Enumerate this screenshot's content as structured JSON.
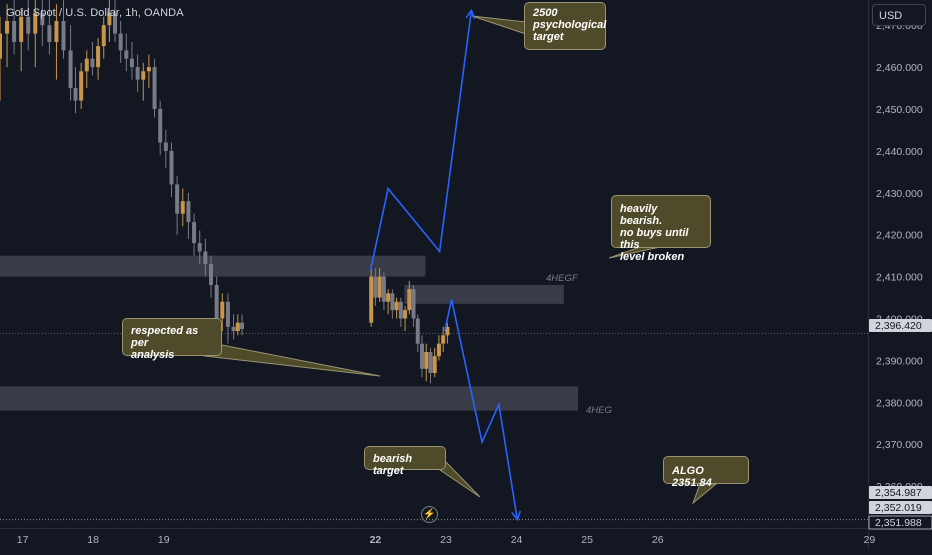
{
  "header": {
    "symbol_title": "Gold Spot / U.S. Dollar, 1h, OANDA",
    "currency_button": "USD"
  },
  "colors": {
    "background": "#131722",
    "up_candle": "#c8954a",
    "down_candle": "#787b86",
    "projection": "#2962ff",
    "zone_fill": "#434651",
    "callout_fill": "#4f4b2a",
    "last_price_tag": "#d1d4dc"
  },
  "annotations": {
    "target_2500": "2500\npsychological\ntarget",
    "heavily_bearish": "heavily bearish.\nno buys until this\nlevel broken",
    "respected": "respected as per\nanalysis",
    "bearish_target": "bearish target",
    "algo": "ALGO 2351.84",
    "zone_upper_label": "4HEGF",
    "zone_lower_label": "4HEG"
  },
  "chart_data": {
    "type": "candlestick",
    "title": "Gold Spot / U.S. Dollar, 1h, OANDA",
    "xlabel": "",
    "ylabel": "",
    "grid": false,
    "ylim": [
      2350,
      2476
    ],
    "x_ticks": [
      "17",
      "18",
      "19",
      "22",
      "23",
      "24",
      "25",
      "26",
      "29"
    ],
    "x_tick_days": [
      17,
      18,
      19,
      22,
      23,
      24,
      25,
      26,
      29
    ],
    "xlim_days": [
      16.68,
      28.98
    ],
    "y_ticks": [
      2360,
      2370,
      2380,
      2390,
      2400,
      2410,
      2420,
      2430,
      2440,
      2450,
      2460
    ],
    "y_tick_labels": [
      "2,360.000",
      "2,370.000",
      "2,380.000",
      "2,390.000",
      "2,400.000",
      "2,410.000",
      "2,420.000",
      "2,430.000",
      "2,440.000",
      "2,450.000",
      "2,460.000"
    ],
    "price_tags": [
      {
        "value": 2396.42,
        "label": "2,396.420",
        "style": "last"
      },
      {
        "value": 2354.987,
        "label": "2,354.987",
        "style": "grey"
      },
      {
        "value": 2352.019,
        "label": "2,352.019",
        "style": "grey"
      },
      {
        "value": 2351.988,
        "label": "2,351.988",
        "style": "dark"
      }
    ],
    "zones": [
      {
        "name": "upper-wide",
        "y_top": 2415.0,
        "y_bottom": 2410.0,
        "x_start": 16.68,
        "x_end": 22.71
      },
      {
        "name": "4HEGF",
        "y_top": 2408.0,
        "y_bottom": 2403.5,
        "x_start": 22.41,
        "x_end": 24.67
      },
      {
        "name": "4HEG",
        "y_top": 2383.8,
        "y_bottom": 2378.0,
        "x_start": 16.68,
        "x_end": 24.87
      }
    ],
    "projections": [
      {
        "name": "bullish-path",
        "points": [
          [
            21.93,
            2411.5
          ],
          [
            22.18,
            2431.0
          ],
          [
            22.91,
            2416.0
          ],
          [
            23.36,
            2473.5
          ]
        ]
      },
      {
        "name": "bearish-path",
        "points": [
          [
            22.98,
            2397.0
          ],
          [
            23.08,
            2404.5
          ],
          [
            23.51,
            2370.5
          ],
          [
            23.75,
            2379.5
          ],
          [
            24.01,
            2352.0
          ]
        ]
      }
    ],
    "algo_line": 2352.0,
    "series": [
      {
        "x": 16.68,
        "open": 2462.0,
        "high": 2472.0,
        "low": 2452.0,
        "close": 2468.0
      },
      {
        "x": 16.78,
        "open": 2468.0,
        "high": 2475.0,
        "low": 2460.0,
        "close": 2471.0
      },
      {
        "x": 16.88,
        "open": 2471.0,
        "high": 2476.0,
        "low": 2463.0,
        "close": 2466.0
      },
      {
        "x": 16.98,
        "open": 2466.0,
        "high": 2474.0,
        "low": 2459.0,
        "close": 2472.0
      },
      {
        "x": 17.08,
        "open": 2472.0,
        "high": 2476.0,
        "low": 2464.0,
        "close": 2468.0
      },
      {
        "x": 17.18,
        "open": 2468.0,
        "high": 2476.0,
        "low": 2460.0,
        "close": 2473.0
      },
      {
        "x": 17.28,
        "open": 2473.0,
        "high": 2476.0,
        "low": 2465.0,
        "close": 2470.0
      },
      {
        "x": 17.38,
        "open": 2470.0,
        "high": 2476.0,
        "low": 2463.0,
        "close": 2466.0
      },
      {
        "x": 17.48,
        "open": 2466.0,
        "high": 2475.0,
        "low": 2457.0,
        "close": 2471.0
      },
      {
        "x": 17.58,
        "open": 2471.0,
        "high": 2476.0,
        "low": 2462.0,
        "close": 2464.0
      },
      {
        "x": 17.68,
        "open": 2464.0,
        "high": 2470.0,
        "low": 2452.0,
        "close": 2455.0
      },
      {
        "x": 17.75,
        "open": 2455.0,
        "high": 2460.0,
        "low": 2449.0,
        "close": 2452.0
      },
      {
        "x": 17.83,
        "open": 2452.0,
        "high": 2461.0,
        "low": 2450.0,
        "close": 2459.0
      },
      {
        "x": 17.91,
        "open": 2459.0,
        "high": 2464.0,
        "low": 2455.0,
        "close": 2462.0
      },
      {
        "x": 17.99,
        "open": 2462.0,
        "high": 2466.0,
        "low": 2458.0,
        "close": 2460.0
      },
      {
        "x": 18.07,
        "open": 2460.0,
        "high": 2467.0,
        "low": 2457.0,
        "close": 2465.0
      },
      {
        "x": 18.15,
        "open": 2465.0,
        "high": 2472.0,
        "low": 2462.0,
        "close": 2470.0
      },
      {
        "x": 18.23,
        "open": 2470.0,
        "high": 2476.0,
        "low": 2466.0,
        "close": 2473.0
      },
      {
        "x": 18.31,
        "open": 2473.0,
        "high": 2476.0,
        "low": 2466.0,
        "close": 2468.0
      },
      {
        "x": 18.39,
        "open": 2468.0,
        "high": 2471.0,
        "low": 2461.0,
        "close": 2464.0
      },
      {
        "x": 18.47,
        "open": 2464.0,
        "high": 2468.0,
        "low": 2459.0,
        "close": 2462.0
      },
      {
        "x": 18.55,
        "open": 2462.0,
        "high": 2466.0,
        "low": 2457.0,
        "close": 2460.0
      },
      {
        "x": 18.63,
        "open": 2460.0,
        "high": 2463.0,
        "low": 2454.0,
        "close": 2457.0
      },
      {
        "x": 18.71,
        "open": 2457.0,
        "high": 2461.0,
        "low": 2452.0,
        "close": 2459.0
      },
      {
        "x": 18.79,
        "open": 2459.0,
        "high": 2463.0,
        "low": 2455.0,
        "close": 2460.0
      },
      {
        "x": 18.87,
        "open": 2460.0,
        "high": 2462.0,
        "low": 2448.0,
        "close": 2450.0
      },
      {
        "x": 18.95,
        "open": 2450.0,
        "high": 2452.0,
        "low": 2439.0,
        "close": 2442.0
      },
      {
        "x": 19.03,
        "open": 2442.0,
        "high": 2445.0,
        "low": 2436.0,
        "close": 2440.0
      },
      {
        "x": 19.11,
        "open": 2440.0,
        "high": 2442.0,
        "low": 2429.0,
        "close": 2432.0
      },
      {
        "x": 19.19,
        "open": 2432.0,
        "high": 2434.0,
        "low": 2420.0,
        "close": 2425.0
      },
      {
        "x": 19.27,
        "open": 2425.0,
        "high": 2431.0,
        "low": 2422.0,
        "close": 2428.0
      },
      {
        "x": 19.35,
        "open": 2428.0,
        "high": 2430.0,
        "low": 2419.0,
        "close": 2423.0
      },
      {
        "x": 19.43,
        "open": 2423.0,
        "high": 2425.0,
        "low": 2415.0,
        "close": 2418.0
      },
      {
        "x": 19.51,
        "open": 2418.0,
        "high": 2421.0,
        "low": 2413.0,
        "close": 2416.0
      },
      {
        "x": 19.59,
        "open": 2416.0,
        "high": 2419.0,
        "low": 2410.0,
        "close": 2413.0
      },
      {
        "x": 19.67,
        "open": 2413.0,
        "high": 2415.0,
        "low": 2405.0,
        "close": 2408.0
      },
      {
        "x": 19.75,
        "open": 2408.0,
        "high": 2410.0,
        "low": 2396.0,
        "close": 2400.0
      },
      {
        "x": 19.83,
        "open": 2400.0,
        "high": 2406.0,
        "low": 2397.0,
        "close": 2404.0
      },
      {
        "x": 19.91,
        "open": 2404.0,
        "high": 2406.0,
        "low": 2394.0,
        "close": 2398.0
      },
      {
        "x": 19.99,
        "open": 2398.0,
        "high": 2401.0,
        "low": 2395.0,
        "close": 2397.0
      },
      {
        "x": 20.05,
        "open": 2397.0,
        "high": 2401.0,
        "low": 2396.0,
        "close": 2399.0
      },
      {
        "x": 20.11,
        "open": 2399.0,
        "high": 2401.0,
        "low": 2396.0,
        "close": 2397.5
      },
      {
        "x": 21.94,
        "open": 2399.0,
        "high": 2413.0,
        "low": 2398.0,
        "close": 2410.0
      },
      {
        "x": 22.0,
        "open": 2410.0,
        "high": 2412.0,
        "low": 2403.0,
        "close": 2405.0
      },
      {
        "x": 22.06,
        "open": 2405.0,
        "high": 2412.0,
        "low": 2404.0,
        "close": 2410.0
      },
      {
        "x": 22.12,
        "open": 2410.0,
        "high": 2411.0,
        "low": 2402.0,
        "close": 2404.0
      },
      {
        "x": 22.18,
        "open": 2404.0,
        "high": 2407.0,
        "low": 2401.0,
        "close": 2406.0
      },
      {
        "x": 22.24,
        "open": 2406.0,
        "high": 2407.0,
        "low": 2400.0,
        "close": 2402.0
      },
      {
        "x": 22.3,
        "open": 2402.0,
        "high": 2405.0,
        "low": 2400.0,
        "close": 2404.0
      },
      {
        "x": 22.36,
        "open": 2404.0,
        "high": 2405.0,
        "low": 2398.0,
        "close": 2400.0
      },
      {
        "x": 22.42,
        "open": 2400.0,
        "high": 2403.0,
        "low": 2397.0,
        "close": 2402.0
      },
      {
        "x": 22.48,
        "open": 2402.0,
        "high": 2409.0,
        "low": 2401.0,
        "close": 2407.0
      },
      {
        "x": 22.54,
        "open": 2407.0,
        "high": 2408.0,
        "low": 2398.0,
        "close": 2400.0
      },
      {
        "x": 22.6,
        "open": 2400.0,
        "high": 2401.0,
        "low": 2392.0,
        "close": 2394.0
      },
      {
        "x": 22.66,
        "open": 2394.0,
        "high": 2396.0,
        "low": 2386.0,
        "close": 2388.0
      },
      {
        "x": 22.72,
        "open": 2388.0,
        "high": 2394.0,
        "low": 2385.0,
        "close": 2392.0
      },
      {
        "x": 22.78,
        "open": 2392.0,
        "high": 2393.0,
        "low": 2384.5,
        "close": 2387.0
      },
      {
        "x": 22.84,
        "open": 2387.0,
        "high": 2393.0,
        "low": 2386.0,
        "close": 2391.0
      },
      {
        "x": 22.9,
        "open": 2391.0,
        "high": 2396.0,
        "low": 2390.0,
        "close": 2394.0
      },
      {
        "x": 22.96,
        "open": 2394.0,
        "high": 2398.0,
        "low": 2392.0,
        "close": 2396.0
      },
      {
        "x": 23.02,
        "open": 2396.0,
        "high": 2399.0,
        "low": 2394.0,
        "close": 2398.0
      }
    ]
  }
}
